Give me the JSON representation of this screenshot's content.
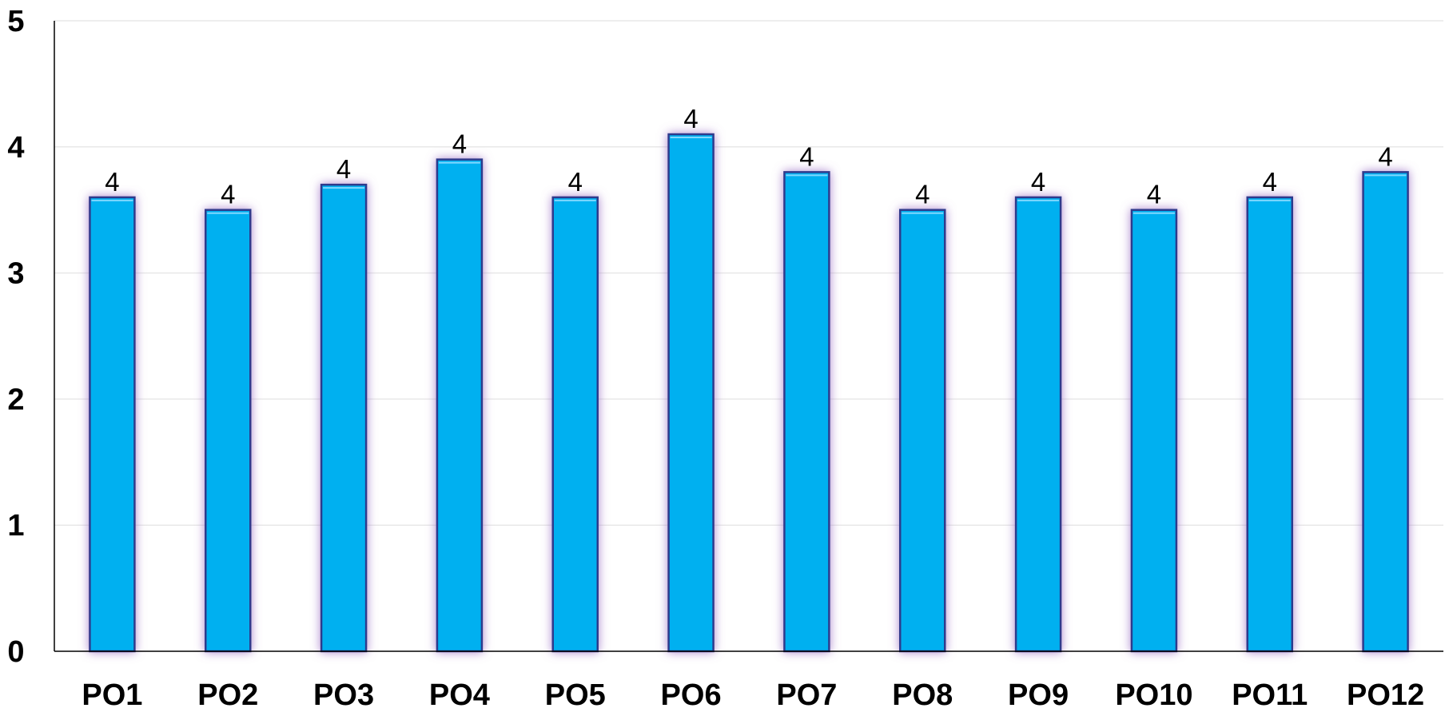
{
  "chart_data": {
    "type": "bar",
    "categories": [
      "PO1",
      "PO2",
      "PO3",
      "PO4",
      "PO5",
      "PO6",
      "PO7",
      "PO8",
      "PO9",
      "PO10",
      "PO11",
      "PO12"
    ],
    "values": [
      3.6,
      3.5,
      3.7,
      3.9,
      3.6,
      4.1,
      3.8,
      3.5,
      3.6,
      3.5,
      3.6,
      3.8
    ],
    "data_labels": [
      "4",
      "4",
      "4",
      "4",
      "4",
      "4",
      "4",
      "4",
      "4",
      "4",
      "4",
      "4"
    ],
    "ylim": [
      0,
      5
    ],
    "yticks": [
      "0",
      "1",
      "2",
      "3",
      "4",
      "5"
    ],
    "grid": true,
    "legend": "none",
    "colors": {
      "bar_fill": "#00b0f0",
      "bar_stroke": "#2e3a8c",
      "bar_glow": "#9b6fc4",
      "gridline": "#e8e8e8",
      "axis": "#000000"
    }
  }
}
